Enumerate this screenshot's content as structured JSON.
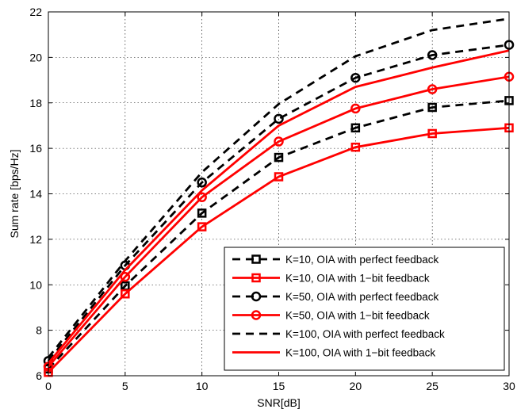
{
  "chart_data": {
    "type": "line",
    "xlabel": "SNR[dB]",
    "ylabel": "Sum rate [bps/Hz]",
    "xlim": [
      0,
      30
    ],
    "ylim": [
      6,
      22
    ],
    "xticks": [
      0,
      5,
      10,
      15,
      20,
      25,
      30
    ],
    "yticks": [
      6,
      8,
      10,
      12,
      14,
      16,
      18,
      20,
      22
    ],
    "grid": true,
    "legend_position": "bottom-right",
    "x": [
      0,
      5,
      10,
      15,
      20,
      25,
      30
    ],
    "series": [
      {
        "name": "K=10, OIA with perfect feedback",
        "values": [
          6.3,
          9.95,
          13.15,
          15.6,
          16.9,
          17.8,
          18.1
        ],
        "color": "#000000",
        "line_style": "dashed",
        "marker": "square"
      },
      {
        "name": "K=10, OIA with 1−bit feedback",
        "values": [
          6.15,
          9.6,
          12.55,
          14.75,
          16.05,
          16.65,
          16.9
        ],
        "color": "#ff0000",
        "line_style": "solid",
        "marker": "square"
      },
      {
        "name": "K=50, OIA with perfect feedback",
        "values": [
          6.65,
          10.85,
          14.5,
          17.3,
          19.1,
          20.1,
          20.55
        ],
        "color": "#000000",
        "line_style": "dashed",
        "marker": "circle"
      },
      {
        "name": "K=50, OIA with 1−bit feedback",
        "values": [
          6.4,
          10.35,
          13.85,
          16.3,
          17.75,
          18.6,
          19.15
        ],
        "color": "#ff0000",
        "line_style": "solid",
        "marker": "circle"
      },
      {
        "name": "K=100, OIA with perfect feedback",
        "values": [
          6.8,
          11.05,
          14.95,
          17.95,
          20.05,
          21.2,
          21.7
        ],
        "color": "#000000",
        "line_style": "dashed",
        "marker": "none"
      },
      {
        "name": "K=100, OIA with 1−bit feedback",
        "values": [
          6.55,
          10.65,
          14.15,
          17.0,
          18.7,
          19.55,
          20.3
        ],
        "color": "#ff0000",
        "line_style": "solid",
        "marker": "none"
      }
    ]
  }
}
